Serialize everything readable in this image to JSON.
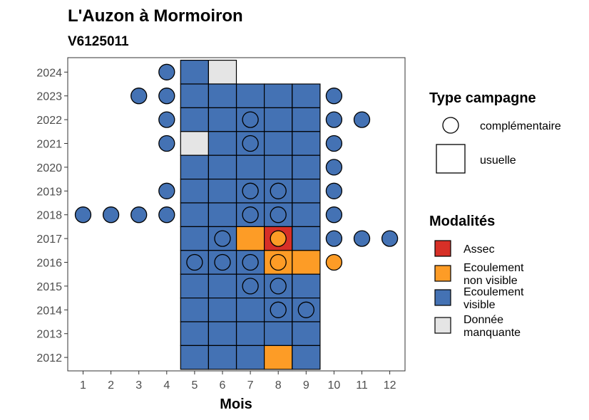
{
  "chart_data": {
    "type": "heatmap",
    "title": "L'Auzon à Mormoiron",
    "subtitle": "V6125011",
    "xlabel": "Mois",
    "ylabel": "",
    "x_ticks": [
      "1",
      "2",
      "3",
      "4",
      "5",
      "6",
      "7",
      "8",
      "9",
      "10",
      "11",
      "12"
    ],
    "y_ticks": [
      "2012",
      "2013",
      "2014",
      "2015",
      "2016",
      "2017",
      "2018",
      "2019",
      "2020",
      "2021",
      "2022",
      "2023",
      "2024"
    ],
    "legend_shape": {
      "title": "Type campagne",
      "items": [
        {
          "key": "complementaire",
          "label": "complémentaire",
          "shape": "circle"
        },
        {
          "key": "usuelle",
          "label": "usuelle",
          "shape": "square"
        }
      ]
    },
    "legend_fill": {
      "title": "Modalités",
      "items": [
        {
          "key": "assec",
          "lines": [
            "Assec"
          ],
          "color": "#d73027"
        },
        {
          "key": "non_visible",
          "lines": [
            "Ecoulement",
            "non visible"
          ],
          "color": "#fd9c26"
        },
        {
          "key": "visible",
          "lines": [
            "Ecoulement",
            "visible"
          ],
          "color": "#4472b4"
        },
        {
          "key": "manquante",
          "lines": [
            "Donnée",
            "manquante"
          ],
          "color": "#e5e5e5"
        }
      ]
    },
    "legend_placement": "right",
    "grid": false,
    "usuelle": [
      {
        "year": 2024,
        "month": 5,
        "value": "visible"
      },
      {
        "year": 2024,
        "month": 6,
        "value": "manquante"
      },
      {
        "year": 2023,
        "month": 5,
        "value": "visible"
      },
      {
        "year": 2023,
        "month": 6,
        "value": "visible"
      },
      {
        "year": 2023,
        "month": 7,
        "value": "visible"
      },
      {
        "year": 2023,
        "month": 8,
        "value": "visible"
      },
      {
        "year": 2023,
        "month": 9,
        "value": "visible"
      },
      {
        "year": 2022,
        "month": 5,
        "value": "visible"
      },
      {
        "year": 2022,
        "month": 6,
        "value": "visible"
      },
      {
        "year": 2022,
        "month": 7,
        "value": "visible"
      },
      {
        "year": 2022,
        "month": 8,
        "value": "visible"
      },
      {
        "year": 2022,
        "month": 9,
        "value": "visible"
      },
      {
        "year": 2021,
        "month": 5,
        "value": "manquante"
      },
      {
        "year": 2021,
        "month": 6,
        "value": "visible"
      },
      {
        "year": 2021,
        "month": 7,
        "value": "visible"
      },
      {
        "year": 2021,
        "month": 8,
        "value": "visible"
      },
      {
        "year": 2021,
        "month": 9,
        "value": "visible"
      },
      {
        "year": 2020,
        "month": 5,
        "value": "visible"
      },
      {
        "year": 2020,
        "month": 6,
        "value": "visible"
      },
      {
        "year": 2020,
        "month": 7,
        "value": "visible"
      },
      {
        "year": 2020,
        "month": 8,
        "value": "visible"
      },
      {
        "year": 2020,
        "month": 9,
        "value": "visible"
      },
      {
        "year": 2019,
        "month": 5,
        "value": "visible"
      },
      {
        "year": 2019,
        "month": 6,
        "value": "visible"
      },
      {
        "year": 2019,
        "month": 7,
        "value": "visible"
      },
      {
        "year": 2019,
        "month": 8,
        "value": "visible"
      },
      {
        "year": 2019,
        "month": 9,
        "value": "visible"
      },
      {
        "year": 2018,
        "month": 5,
        "value": "visible"
      },
      {
        "year": 2018,
        "month": 6,
        "value": "visible"
      },
      {
        "year": 2018,
        "month": 7,
        "value": "visible"
      },
      {
        "year": 2018,
        "month": 8,
        "value": "visible"
      },
      {
        "year": 2018,
        "month": 9,
        "value": "visible"
      },
      {
        "year": 2017,
        "month": 5,
        "value": "visible"
      },
      {
        "year": 2017,
        "month": 6,
        "value": "visible"
      },
      {
        "year": 2017,
        "month": 7,
        "value": "non_visible"
      },
      {
        "year": 2017,
        "month": 8,
        "value": "assec"
      },
      {
        "year": 2017,
        "month": 9,
        "value": "visible"
      },
      {
        "year": 2016,
        "month": 5,
        "value": "visible"
      },
      {
        "year": 2016,
        "month": 6,
        "value": "visible"
      },
      {
        "year": 2016,
        "month": 7,
        "value": "visible"
      },
      {
        "year": 2016,
        "month": 8,
        "value": "non_visible"
      },
      {
        "year": 2016,
        "month": 9,
        "value": "non_visible"
      },
      {
        "year": 2015,
        "month": 5,
        "value": "visible"
      },
      {
        "year": 2015,
        "month": 6,
        "value": "visible"
      },
      {
        "year": 2015,
        "month": 7,
        "value": "visible"
      },
      {
        "year": 2015,
        "month": 8,
        "value": "visible"
      },
      {
        "year": 2015,
        "month": 9,
        "value": "visible"
      },
      {
        "year": 2014,
        "month": 5,
        "value": "visible"
      },
      {
        "year": 2014,
        "month": 6,
        "value": "visible"
      },
      {
        "year": 2014,
        "month": 7,
        "value": "visible"
      },
      {
        "year": 2014,
        "month": 8,
        "value": "visible"
      },
      {
        "year": 2014,
        "month": 9,
        "value": "visible"
      },
      {
        "year": 2013,
        "month": 5,
        "value": "visible"
      },
      {
        "year": 2013,
        "month": 6,
        "value": "visible"
      },
      {
        "year": 2013,
        "month": 7,
        "value": "visible"
      },
      {
        "year": 2013,
        "month": 8,
        "value": "visible"
      },
      {
        "year": 2013,
        "month": 9,
        "value": "visible"
      },
      {
        "year": 2012,
        "month": 5,
        "value": "visible"
      },
      {
        "year": 2012,
        "month": 6,
        "value": "visible"
      },
      {
        "year": 2012,
        "month": 7,
        "value": "visible"
      },
      {
        "year": 2012,
        "month": 8,
        "value": "non_visible"
      },
      {
        "year": 2012,
        "month": 9,
        "value": "visible"
      }
    ],
    "complementaire": [
      {
        "year": 2024,
        "month": 4,
        "value": "visible"
      },
      {
        "year": 2023,
        "month": 3,
        "value": "visible"
      },
      {
        "year": 2023,
        "month": 4,
        "value": "visible"
      },
      {
        "year": 2023,
        "month": 10,
        "value": "visible"
      },
      {
        "year": 2022,
        "month": 4,
        "value": "visible"
      },
      {
        "year": 2022,
        "month": 7,
        "value": "visible"
      },
      {
        "year": 2022,
        "month": 10,
        "value": "visible"
      },
      {
        "year": 2022,
        "month": 11,
        "value": "visible"
      },
      {
        "year": 2021,
        "month": 4,
        "value": "visible"
      },
      {
        "year": 2021,
        "month": 7,
        "value": "visible"
      },
      {
        "year": 2021,
        "month": 10,
        "value": "visible"
      },
      {
        "year": 2020,
        "month": 10,
        "value": "visible"
      },
      {
        "year": 2019,
        "month": 4,
        "value": "visible"
      },
      {
        "year": 2019,
        "month": 7,
        "value": "visible"
      },
      {
        "year": 2019,
        "month": 8,
        "value": "visible"
      },
      {
        "year": 2019,
        "month": 10,
        "value": "visible"
      },
      {
        "year": 2018,
        "month": 1,
        "value": "visible"
      },
      {
        "year": 2018,
        "month": 2,
        "value": "visible"
      },
      {
        "year": 2018,
        "month": 3,
        "value": "visible"
      },
      {
        "year": 2018,
        "month": 4,
        "value": "visible"
      },
      {
        "year": 2018,
        "month": 7,
        "value": "visible"
      },
      {
        "year": 2018,
        "month": 8,
        "value": "visible"
      },
      {
        "year": 2018,
        "month": 10,
        "value": "visible"
      },
      {
        "year": 2017,
        "month": 6,
        "value": "visible"
      },
      {
        "year": 2017,
        "month": 8,
        "value": "non_visible"
      },
      {
        "year": 2017,
        "month": 10,
        "value": "visible"
      },
      {
        "year": 2017,
        "month": 11,
        "value": "visible"
      },
      {
        "year": 2017,
        "month": 12,
        "value": "visible"
      },
      {
        "year": 2016,
        "month": 5,
        "value": "visible"
      },
      {
        "year": 2016,
        "month": 6,
        "value": "visible"
      },
      {
        "year": 2016,
        "month": 7,
        "value": "visible"
      },
      {
        "year": 2016,
        "month": 8,
        "value": "visible"
      },
      {
        "year": 2016,
        "month": 10,
        "value": "non_visible"
      },
      {
        "year": 2015,
        "month": 7,
        "value": "visible"
      },
      {
        "year": 2015,
        "month": 8,
        "value": "visible"
      },
      {
        "year": 2014,
        "month": 8,
        "value": "visible"
      },
      {
        "year": 2014,
        "month": 9,
        "value": "visible"
      }
    ]
  }
}
